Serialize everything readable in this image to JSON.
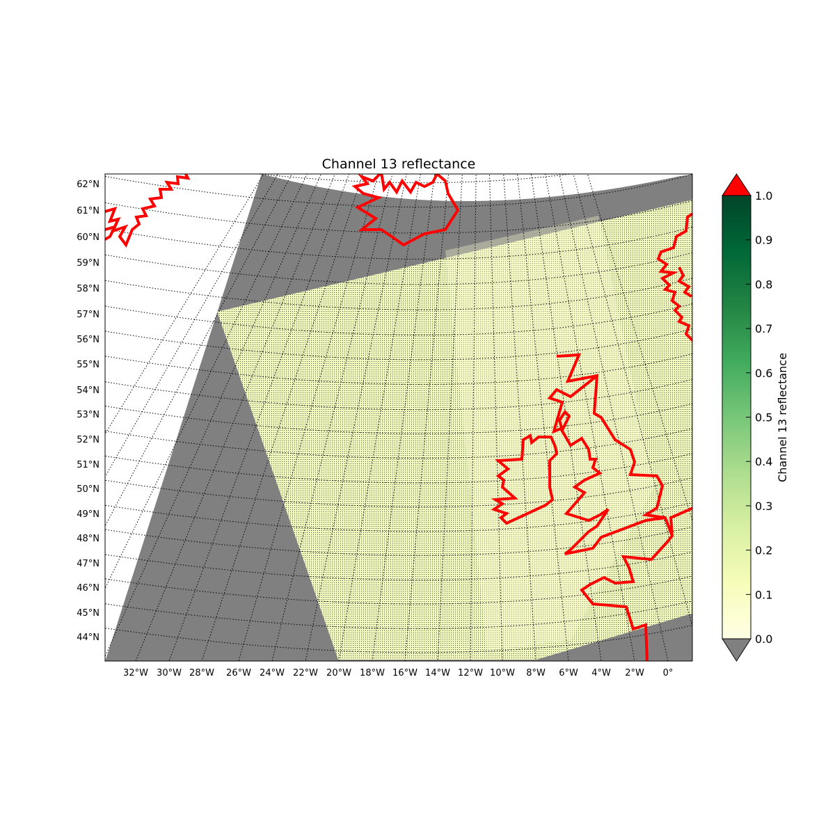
{
  "figure": {
    "title": "Channel 13 reflectance"
  },
  "map": {
    "projection": "lambert conformal (curved parallels and meridians)",
    "parallel_labels": [
      "62°N",
      "61°N",
      "60°N",
      "59°N",
      "58°N",
      "57°N",
      "56°N",
      "55°N",
      "54°N",
      "53°N",
      "52°N",
      "51°N",
      "50°N",
      "49°N",
      "48°N",
      "47°N",
      "46°N",
      "45°N",
      "44°N"
    ],
    "meridian_labels": [
      "32°W",
      "30°W",
      "28°W",
      "26°W",
      "24°W",
      "22°W",
      "20°W",
      "18°W",
      "16°W",
      "14°W",
      "12°W",
      "10°W",
      "8°W",
      "6°W",
      "4°W",
      "2°W",
      "0°"
    ],
    "gridlines": "dotted black",
    "coastline_color": "#ff0000",
    "no_data_color": "#808080",
    "outside_domain_color": "#ffffff",
    "features": [
      "Iceland coastline",
      "Ireland coastline",
      "Great Britain coastline",
      "Norway coastline",
      "Greenland coastline",
      "France coastline"
    ]
  },
  "colorbar": {
    "label": "Channel 13 reflectance",
    "colormap": "YlGn",
    "ticks": [
      "0.0",
      "0.1",
      "0.2",
      "0.3",
      "0.4",
      "0.5",
      "0.6",
      "0.7",
      "0.8",
      "0.9",
      "1.0"
    ],
    "range": [
      0.0,
      1.0
    ],
    "extend_min_color": "#808080",
    "extend_max_color": "#ff0000",
    "stops": [
      "#ffffe5",
      "#f7fcb9",
      "#d9f0a3",
      "#addd8e",
      "#78c679",
      "#41ab5d",
      "#238443",
      "#006837",
      "#004529"
    ]
  },
  "chart_data": {
    "type": "heatmap",
    "title": "Channel 13 reflectance",
    "value_range": [
      0.0,
      1.0
    ],
    "typical_swath_value": 0.08,
    "colorbar_label": "Channel 13 reflectance"
  }
}
